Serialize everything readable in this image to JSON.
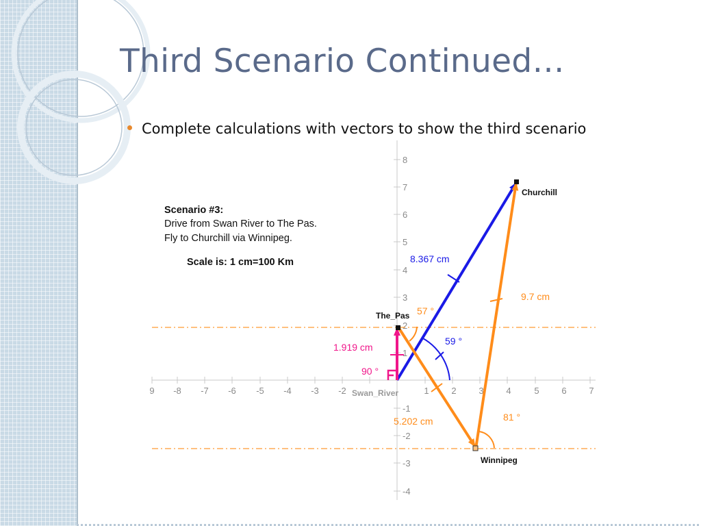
{
  "slide": {
    "title": "Third Scenario Continued…",
    "bullets": [
      "Complete calculations with vectors to show the third scenario"
    ],
    "accent_color": "#e8892e",
    "title_color": "#5a6a8a"
  },
  "diagram": {
    "scenario": {
      "heading": "Scenario #3:",
      "lines": [
        "Drive from Swan River to The Pas.",
        "Fly to Churchill via Winnipeg."
      ],
      "scale": "Scale is: 1 cm=100 Km"
    },
    "axes": {
      "x_ticks": [
        "9",
        "-8",
        "-7",
        "-6",
        "-5",
        "-4",
        "-3",
        "-2",
        "1",
        "2",
        "3",
        "4",
        "5",
        "6",
        "7"
      ],
      "y_ticks": [
        "8",
        "7",
        "6",
        "5",
        "4",
        "3",
        "2",
        "1",
        "-1",
        "-2",
        "-3",
        "-4"
      ]
    },
    "points": {
      "swan_river": "Swan_River",
      "the_pas": "The_Pas",
      "churchill": "Churchill",
      "winnipeg": "Winnipeg"
    },
    "measurements": {
      "blue_length": "8.367 cm",
      "blue_angle": "59 °",
      "pink_length": "1.919 cm",
      "pink_angle": "90 °",
      "orange_top_angle": "57 °",
      "orange_diag_length": "5.202 cm",
      "orange_long_length": "9.7 cm",
      "orange_bottom_angle": "81 °"
    },
    "colors": {
      "blue": "#1a1ae6",
      "pink": "#f0168a",
      "orange": "#ff8c1a",
      "axis": "#c8c8c8"
    }
  }
}
